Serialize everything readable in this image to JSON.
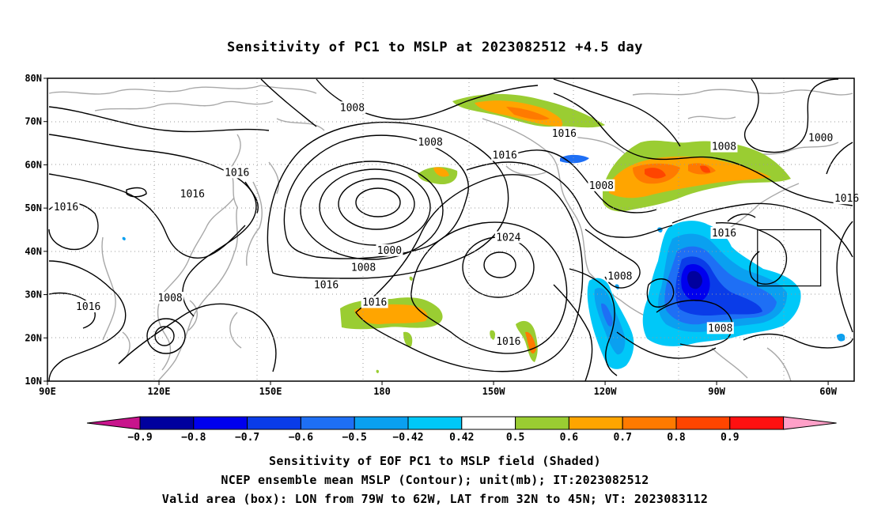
{
  "title": "Sensitivity of PC1 to MSLP at 2023082512 +4.5 day",
  "map": {
    "lon_range": [
      90,
      307
    ],
    "lat_range": [
      10,
      80
    ],
    "lat_ticks": [
      {
        "value": 80,
        "label": "80N"
      },
      {
        "value": 70,
        "label": "70N"
      },
      {
        "value": 60,
        "label": "60N"
      },
      {
        "value": 50,
        "label": "50N"
      },
      {
        "value": 40,
        "label": "40N"
      },
      {
        "value": 30,
        "label": "30N"
      },
      {
        "value": 20,
        "label": "20N"
      },
      {
        "value": 10,
        "label": "10N"
      }
    ],
    "lon_ticks": [
      {
        "value": 90,
        "label": "90E"
      },
      {
        "value": 120,
        "label": "120E"
      },
      {
        "value": 150,
        "label": "150E"
      },
      {
        "value": 180,
        "label": "180"
      },
      {
        "value": 210,
        "label": "150W"
      },
      {
        "value": 240,
        "label": "120W"
      },
      {
        "value": 270,
        "label": "90W"
      },
      {
        "value": 300,
        "label": "60W"
      }
    ],
    "contour_labels": [
      {
        "text": "1008",
        "lon": 172,
        "lat": 73
      },
      {
        "text": "1008",
        "lon": 193,
        "lat": 65
      },
      {
        "text": "1016",
        "lon": 229,
        "lat": 67
      },
      {
        "text": "1008",
        "lon": 272,
        "lat": 64
      },
      {
        "text": "1000",
        "lon": 298,
        "lat": 66
      },
      {
        "text": "1016",
        "lon": 141,
        "lat": 58
      },
      {
        "text": "1016",
        "lon": 129,
        "lat": 53
      },
      {
        "text": "1016",
        "lon": 95,
        "lat": 50
      },
      {
        "text": "1016",
        "lon": 213,
        "lat": 62
      },
      {
        "text": "1008",
        "lon": 239,
        "lat": 55
      },
      {
        "text": "1016",
        "lon": 305,
        "lat": 52
      },
      {
        "text": "1024",
        "lon": 214,
        "lat": 43
      },
      {
        "text": "1016",
        "lon": 272,
        "lat": 44
      },
      {
        "text": "1000",
        "lon": 182,
        "lat": 40
      },
      {
        "text": "1008",
        "lon": 175,
        "lat": 36
      },
      {
        "text": "1016",
        "lon": 165,
        "lat": 32
      },
      {
        "text": "1008",
        "lon": 123,
        "lat": 29
      },
      {
        "text": "1016",
        "lon": 101,
        "lat": 27
      },
      {
        "text": "1016",
        "lon": 178,
        "lat": 28
      },
      {
        "text": "1008",
        "lon": 244,
        "lat": 34
      },
      {
        "text": "1008",
        "lon": 271,
        "lat": 22
      },
      {
        "text": "1016",
        "lon": 214,
        "lat": 19
      }
    ],
    "valid_box": {
      "lon_min": 281,
      "lon_max": 298,
      "lat_min": 32,
      "lat_max": 45
    }
  },
  "colorbar": {
    "labels": [
      "-0.9",
      "-0.8",
      "-0.7",
      "-0.6",
      "-0.5",
      "-0.42",
      "0.42",
      "0.5",
      "0.6",
      "0.7",
      "0.8",
      "0.9"
    ],
    "colors": [
      "#00009e",
      "#0000ee",
      "#0a3ce8",
      "#1e6ff5",
      "#0aa0f0",
      "#00c8f8",
      "#ffffff",
      "#9acd32",
      "#ffa500",
      "#ff7a00",
      "#ff4500",
      "#ff1010"
    ],
    "end_low_color": "#c8148c",
    "end_high_color": "#ffa0c8"
  },
  "captions": {
    "line1": "Sensitivity of EOF PC1 to MSLP field (Shaded)",
    "line2": "NCEP ensemble mean MSLP (Contour); unit(mb); IT:2023082512",
    "line3": "Valid area (box): LON from 79W to 62W, LAT from 32N to 45N; VT: 2023083112"
  }
}
